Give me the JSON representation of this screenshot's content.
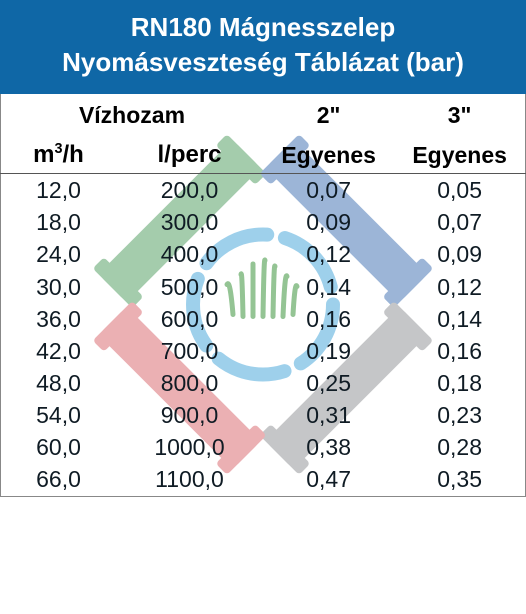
{
  "title": {
    "line1": "RN180  Mágnesszelep",
    "line2": "Nyomásveszteség Táblázat (bar)",
    "bg_color": "#0f67a6",
    "text_color": "#0f1b24"
  },
  "columns": {
    "flow_group": "Vízhozam",
    "size_a": "2\"",
    "size_b": "3\"",
    "flow_unit_a_html": "m<sup>3</sup>/h",
    "flow_unit_b": "l/perc",
    "sub_a": "Egyenes",
    "sub_b": "Egyenes"
  },
  "rows": [
    {
      "m3h": "12,0",
      "lperc": "200,0",
      "a": "0,07",
      "b": "0,05"
    },
    {
      "m3h": "18,0",
      "lperc": "300,0",
      "a": "0,09",
      "b": "0,07"
    },
    {
      "m3h": "24,0",
      "lperc": "400,0",
      "a": "0,12",
      "b": "0,09"
    },
    {
      "m3h": "30,0",
      "lperc": "500,0",
      "a": "0,14",
      "b": "0,12"
    },
    {
      "m3h": "36,0",
      "lperc": "600,0",
      "a": "0,16",
      "b": "0,14"
    },
    {
      "m3h": "42,0",
      "lperc": "700,0",
      "a": "0,19",
      "b": "0,16"
    },
    {
      "m3h": "48,0",
      "lperc": "800,0",
      "a": "0,25",
      "b": "0,18"
    },
    {
      "m3h": "54,0",
      "lperc": "900,0",
      "a": "0,31",
      "b": "0,23"
    },
    {
      "m3h": "60,0",
      "lperc": "1000,0",
      "a": "0,38",
      "b": "0,28"
    },
    {
      "m3h": "66,0",
      "lperc": "1100,0",
      "a": "0,47",
      "b": "0,35"
    }
  ],
  "watermark": {
    "ring_color": "#3fa3d9",
    "grass_color": "#2b8a2b",
    "pipes": [
      {
        "color": "#4c9a5c",
        "angle": -45
      },
      {
        "color": "#3b6db1",
        "angle": 45
      },
      {
        "color": "#8c8f92",
        "angle": 135
      },
      {
        "color": "#d9636a",
        "angle": 225
      }
    ]
  }
}
